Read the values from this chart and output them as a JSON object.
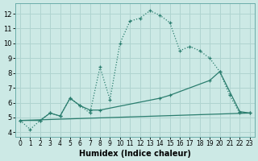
{
  "xlabel": "Humidex (Indice chaleur)",
  "background_color": "#cce9e5",
  "grid_color": "#b0d4d0",
  "line_color": "#2a7d6e",
  "xlim": [
    -0.5,
    23.5
  ],
  "ylim": [
    3.7,
    12.7
  ],
  "xticks": [
    0,
    1,
    2,
    3,
    4,
    5,
    6,
    7,
    8,
    9,
    10,
    11,
    12,
    13,
    14,
    15,
    16,
    17,
    18,
    19,
    20,
    21,
    22,
    23
  ],
  "yticks": [
    4,
    5,
    6,
    7,
    8,
    9,
    10,
    11,
    12
  ],
  "series1_x": [
    0,
    1,
    2,
    3,
    4,
    5,
    6,
    7,
    8,
    9,
    10,
    11,
    12,
    13,
    14,
    15,
    16,
    17,
    18,
    19,
    20,
    21,
    22,
    23
  ],
  "series1_y": [
    4.8,
    4.2,
    4.8,
    5.3,
    5.1,
    6.3,
    5.8,
    5.3,
    8.4,
    6.2,
    10.0,
    11.5,
    11.7,
    12.2,
    11.9,
    11.4,
    9.5,
    9.8,
    9.5,
    9.0,
    8.1,
    6.5,
    5.3,
    5.3
  ],
  "series2_x": [
    0,
    2,
    3,
    4,
    5,
    6,
    7,
    8,
    14,
    15,
    19,
    20,
    22,
    23
  ],
  "series2_y": [
    4.8,
    4.8,
    5.3,
    5.1,
    6.3,
    5.8,
    5.5,
    5.5,
    6.3,
    6.5,
    7.5,
    8.1,
    5.4,
    5.3
  ],
  "series3_x": [
    0,
    23
  ],
  "series3_y": [
    4.8,
    5.3
  ]
}
